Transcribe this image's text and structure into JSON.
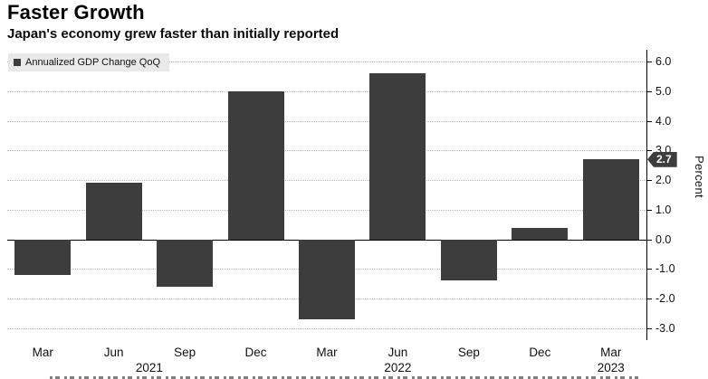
{
  "header": {
    "title": "Faster Growth",
    "subtitle": "Japan's economy grew faster than initially reported"
  },
  "legend": {
    "label": "Annualized GDP Change QoQ",
    "swatch_color": "#3d3d3d"
  },
  "chart_data": {
    "type": "bar",
    "title": "Faster Growth",
    "subtitle": "Japan's economy grew faster than initially reported",
    "series_name": "Annualized GDP Change QoQ",
    "categories": [
      "Mar 2021",
      "Jun 2021",
      "Sep 2021",
      "Dec 2021",
      "Mar 2022",
      "Jun 2022",
      "Sep 2022",
      "Dec 2022",
      "Mar 2023"
    ],
    "x_tick_labels": [
      "Mar",
      "Jun",
      "Sep",
      "Dec",
      "Mar",
      "Jun",
      "Sep",
      "Dec",
      "Mar"
    ],
    "year_labels": [
      {
        "text": "2021",
        "slot": 1.5
      },
      {
        "text": "2022",
        "slot": 5
      },
      {
        "text": "2023",
        "slot": 8
      }
    ],
    "values": [
      -1.2,
      1.9,
      -1.6,
      5.0,
      -2.7,
      5.6,
      -1.4,
      0.4,
      2.7
    ],
    "xlabel": "",
    "ylabel": "Percent",
    "ylim": [
      -3.4,
      6.4
    ],
    "yticks": [
      6.0,
      5.0,
      4.0,
      3.0,
      2.0,
      1.0,
      0.0,
      -1.0,
      -2.0,
      -3.0
    ],
    "grid": "horizontal-dotted",
    "legend_position": "top-left",
    "bar_color": "#3d3d3d",
    "annotation": {
      "text": "2.7",
      "value": 2.7
    }
  }
}
